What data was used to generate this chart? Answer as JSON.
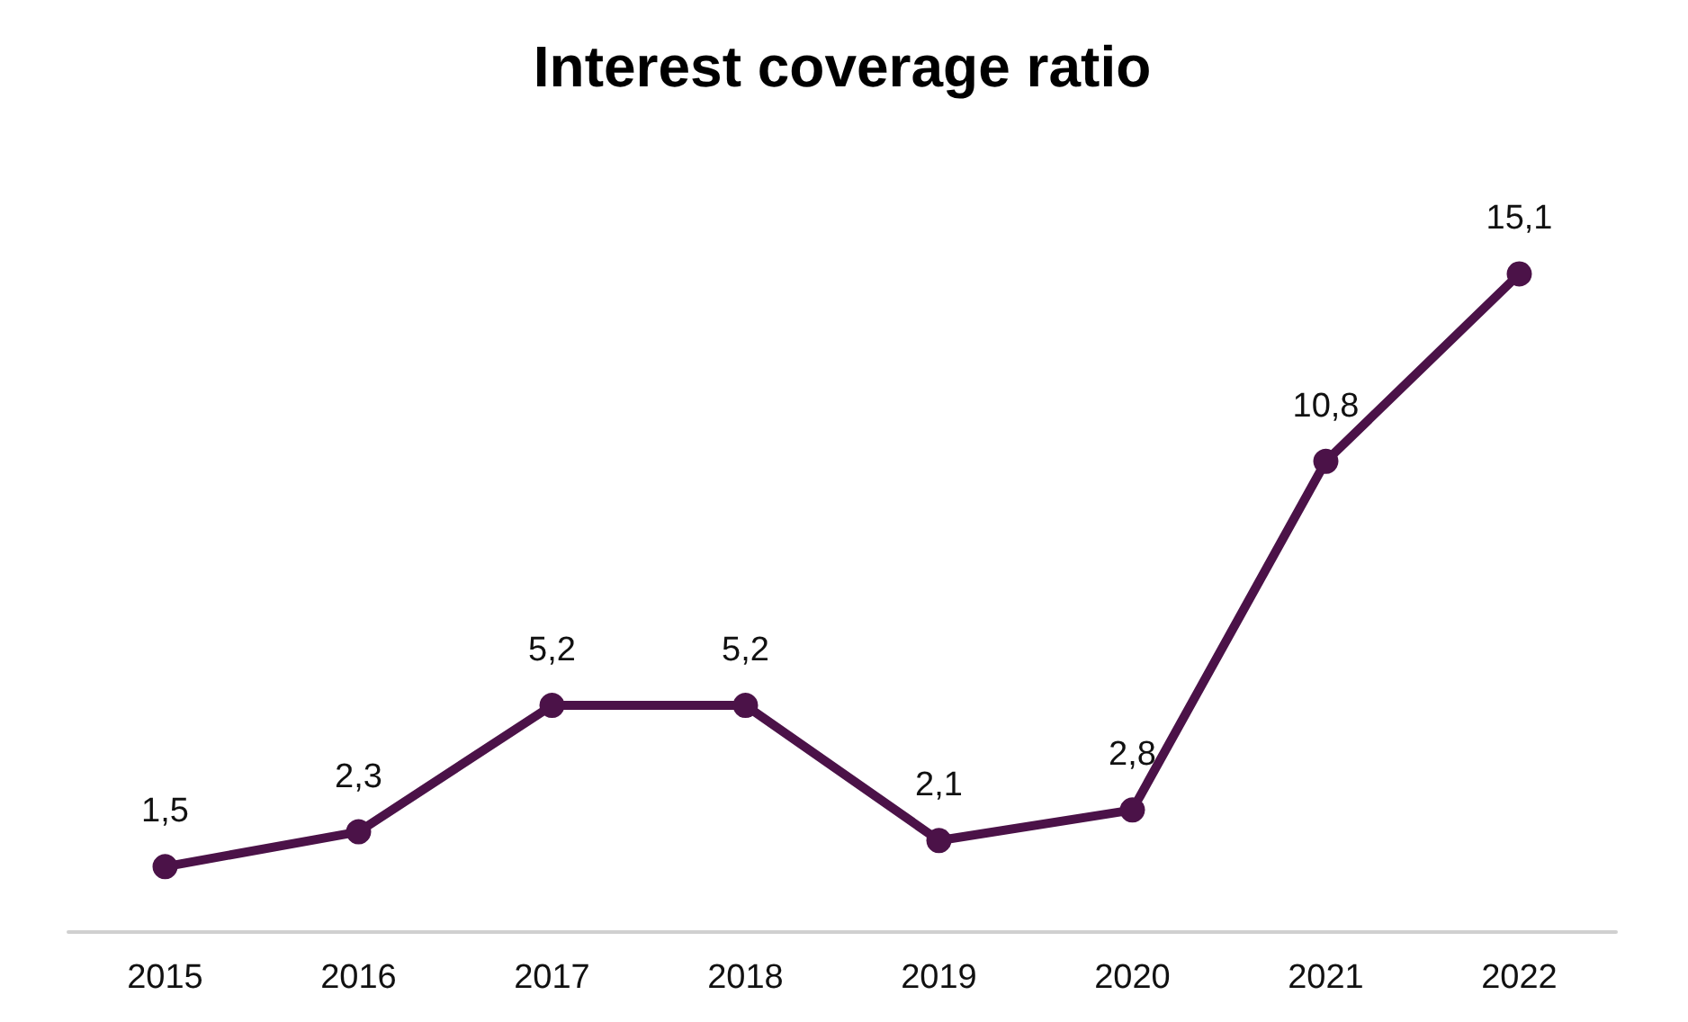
{
  "chart_data": {
    "type": "line",
    "title": "Interest coverage ratio",
    "categories": [
      "2015",
      "2016",
      "2017",
      "2018",
      "2019",
      "2020",
      "2021",
      "2022"
    ],
    "series": [
      {
        "color": "#4b1248",
        "values": [
          1.5,
          2.3,
          5.2,
          5.2,
          2.1,
          2.8,
          10.8,
          15.1
        ],
        "value_labels": [
          "1,5",
          "2,3",
          "5,2",
          "5,2",
          "2,1",
          "2,8",
          "10,8",
          "15,1"
        ]
      }
    ],
    "marker": "circle",
    "line_style": "solid",
    "grid": false,
    "tick_labels": "x"
  }
}
